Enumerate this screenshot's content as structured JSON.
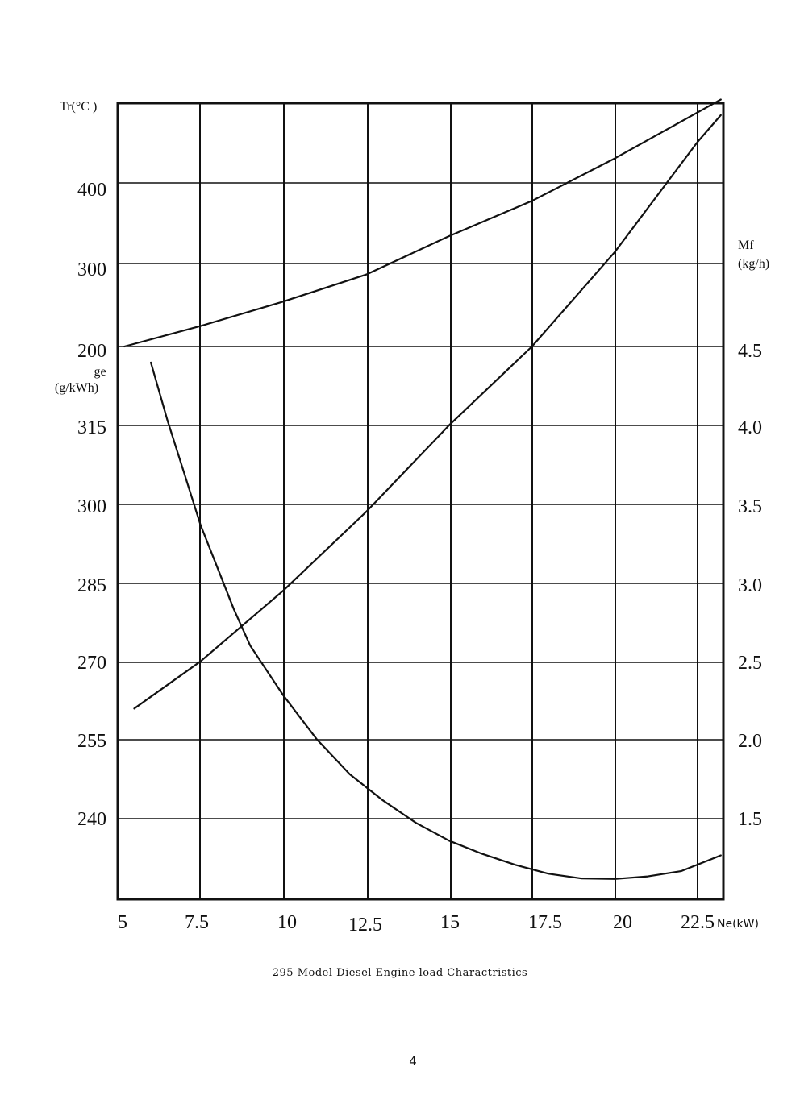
{
  "caption": "295 Model Diesel Engine load Charactristics",
  "page_number": "4",
  "chart_data": {
    "type": "line",
    "title": "295 Model Diesel Engine load Charactristics",
    "xlabel": "Ne(kW)",
    "xlim": [
      5,
      22.5
    ],
    "x_ticks": [
      "5",
      "7.5",
      "10",
      "12.5",
      "15",
      "17.5",
      "20",
      "22.5"
    ],
    "axes": {
      "tr": {
        "label": "Tr(°C )",
        "ticks": [
          "400",
          "300",
          "200"
        ],
        "ylim": [
          200,
          500
        ]
      },
      "ge": {
        "label": [
          "ge",
          "(g/kWh)"
        ],
        "ticks": [
          "315",
          "300",
          "285",
          "270",
          "255",
          "240"
        ],
        "ylim": [
          225,
          330
        ]
      },
      "mf": {
        "label": [
          "Mf",
          "(kg/h)"
        ],
        "ticks": [
          "4.5",
          "4.0",
          "3.5",
          "3.0",
          "2.5",
          "2.0",
          "1.5"
        ],
        "ylim": [
          1.0,
          4.5
        ]
      }
    },
    "grid": true,
    "series": [
      {
        "axis": "tr",
        "x": [
          5.2,
          7.5,
          10,
          12.5,
          15,
          17.5,
          20,
          23.2
        ],
        "y": [
          200,
          225,
          255,
          288,
          335,
          378,
          430,
          502
        ]
      },
      {
        "axis": "ge",
        "x": [
          6.0,
          6.5,
          7.0,
          7.5,
          8.0,
          8.5,
          9.0,
          10.0,
          11.0,
          12.0,
          13.0,
          14.0,
          15.0,
          16.0,
          17.0,
          18.0,
          19.0,
          20.0,
          21.0,
          22.0,
          23.2
        ],
        "y": [
          327,
          316,
          306,
          296,
          288,
          280,
          273,
          263.5,
          255.2,
          248.5,
          243.5,
          239.2,
          235.8,
          233.3,
          231.2,
          229.5,
          228.6,
          228.5,
          229.0,
          230.0,
          233.0
        ]
      },
      {
        "axis": "mf",
        "x": [
          5.5,
          7.5,
          10.0,
          12.5,
          15.0,
          17.5,
          20.0,
          22.5,
          23.2
        ],
        "y": [
          2.2,
          2.5,
          2.95,
          3.45,
          4.0,
          4.5,
          5.1,
          5.8,
          5.97
        ]
      }
    ]
  }
}
